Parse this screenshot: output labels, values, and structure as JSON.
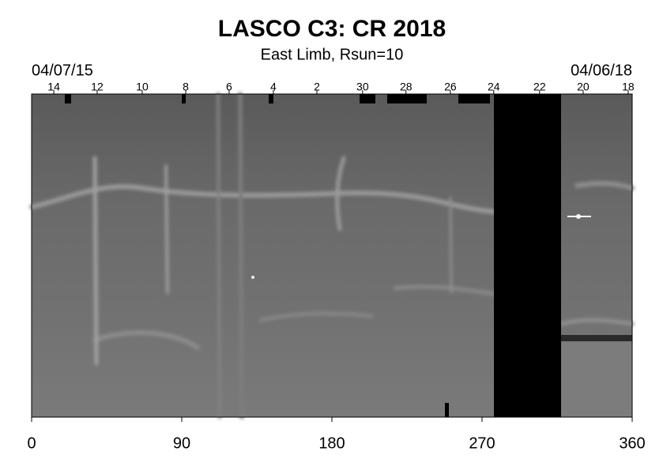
{
  "chart_data": {
    "type": "synoptic-map",
    "title": "LASCO C3: CR 2018",
    "subtitle": "East Limb, Rsun=10",
    "start_date": "04/07/15",
    "end_date": "04/06/18",
    "xlim": [
      0,
      360
    ],
    "xticks": [
      0,
      90,
      180,
      270,
      360
    ],
    "day_ticks": [
      {
        "value": 13.3,
        "label": "14"
      },
      {
        "value": 39.3,
        "label": "12"
      },
      {
        "value": 66.3,
        "label": "10"
      },
      {
        "value": 92.4,
        "label": "8"
      },
      {
        "value": 118.4,
        "label": "6"
      },
      {
        "value": 144.9,
        "label": "4"
      },
      {
        "value": 171,
        "label": "2"
      },
      {
        "value": 198.4,
        "label": "30"
      },
      {
        "value": 224.4,
        "label": "28"
      },
      {
        "value": 251,
        "label": "26"
      },
      {
        "value": 277,
        "label": "24"
      },
      {
        "value": 304.5,
        "label": "22"
      },
      {
        "value": 330.6,
        "label": "20"
      },
      {
        "value": 357.6,
        "label": "18"
      }
    ]
  }
}
